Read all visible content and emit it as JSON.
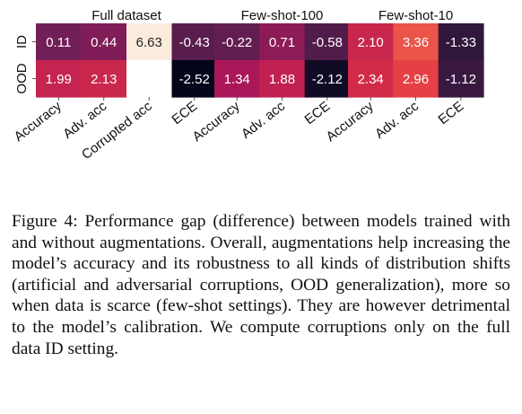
{
  "chart_data": {
    "type": "heatmap",
    "row_labels": [
      "ID",
      "OOD"
    ],
    "panels": [
      {
        "title": "Full dataset",
        "columns": [
          "Accuracy",
          "Adv. acc",
          "Corrupted acc",
          "ECE"
        ],
        "values": [
          [
            0.11,
            0.44,
            6.63,
            -0.43
          ],
          [
            1.99,
            2.13,
            null,
            -2.52
          ]
        ],
        "labels": [
          [
            "0.11",
            "0.44",
            "6.63",
            "-0.43"
          ],
          [
            "1.99",
            "2.13",
            "",
            "-2.52"
          ]
        ]
      },
      {
        "title": "Few-shot-100",
        "columns": [
          "Accuracy",
          "Adv. acc",
          "ECE"
        ],
        "values": [
          [
            -0.22,
            0.71,
            -0.58
          ],
          [
            1.34,
            1.88,
            -2.12
          ]
        ],
        "labels": [
          [
            "-0.22",
            "0.71",
            "-0.58"
          ],
          [
            "1.34",
            "1.88",
            "-2.12"
          ]
        ]
      },
      {
        "title": "Few-shot-10",
        "columns": [
          "Accuracy",
          "Adv. acc",
          "ECE"
        ],
        "values": [
          [
            2.1,
            3.36,
            -1.33
          ],
          [
            2.34,
            2.96,
            -1.12
          ]
        ],
        "labels": [
          [
            "2.10",
            "3.36",
            "-1.33"
          ],
          [
            "2.34",
            "2.96",
            "-1.12"
          ]
        ]
      }
    ],
    "colormap": {
      "name": "rocket",
      "vmin": -2.52,
      "vmax": 6.63,
      "stops": [
        "#03051a",
        "#35193e",
        "#701f57",
        "#ad1759",
        "#e13342",
        "#f37651",
        "#f6b48f",
        "#faebdd"
      ]
    }
  },
  "caption": {
    "text": "Figure 4: Performance gap (difference) between models trained with and without augmentations. Overall, augmentations help increasing the model’s accuracy and its robustness to all kinds of distribution shifts (artificial and adversarial corruptions, OOD generalization), more so when data is scarce (few-shot settings). They are however detrimental to the model’s calibration. We compute corruptions only on the full data ID setting."
  }
}
